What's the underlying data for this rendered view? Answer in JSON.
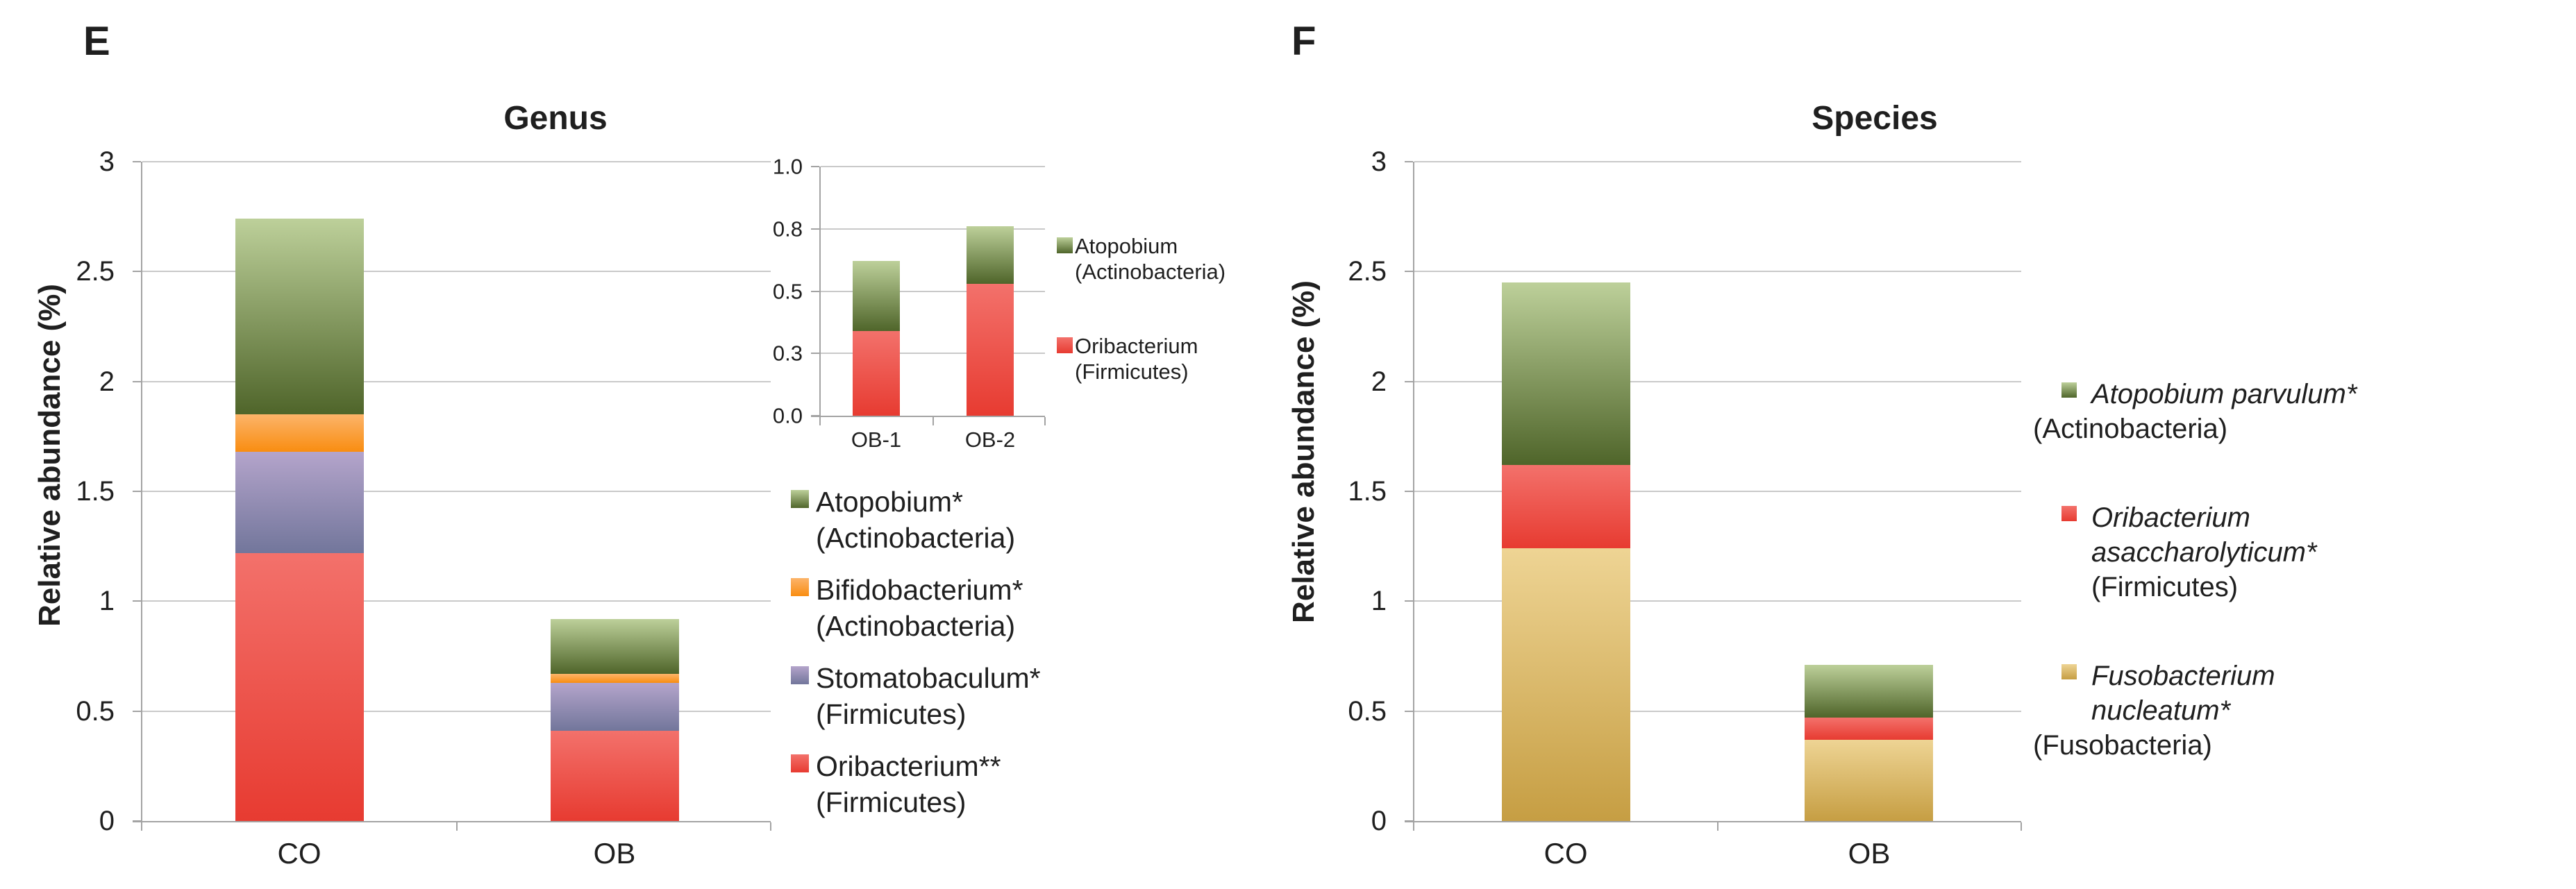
{
  "panels": {
    "e": {
      "letter": "E"
    },
    "f": {
      "letter": "F"
    }
  },
  "chart_data": [
    {
      "id": "genus-main",
      "type": "bar",
      "stacked": true,
      "title": "Genus",
      "ylabel": "Relative abundance (%)",
      "xlabel": "",
      "ylim": [
        0,
        3
      ],
      "grid": true,
      "legend_position": "right",
      "categories": [
        "CO",
        "OB"
      ],
      "yticks": [
        {
          "label": "0",
          "value": 0
        },
        {
          "label": "0.5",
          "value": 0.5
        },
        {
          "label": "1",
          "value": 1
        },
        {
          "label": "1.5",
          "value": 1.5
        },
        {
          "label": "2",
          "value": 2
        },
        {
          "label": "2.5",
          "value": 2.5
        },
        {
          "label": "3",
          "value": 3
        }
      ],
      "series": [
        {
          "name": "Oribacterium**",
          "phylum": "(Firmicutes)",
          "values": [
            1.22,
            0.41
          ],
          "color_top": "#f3716b",
          "color_bottom": "#e73b31"
        },
        {
          "name": "Stomatobaculum*",
          "phylum": "(Firmicutes)",
          "values": [
            0.46,
            0.22
          ],
          "color_top": "#b4a4cb",
          "color_bottom": "#72769b"
        },
        {
          "name": "Bifidobacterium*",
          "phylum": "(Actinobacteria)",
          "values": [
            0.17,
            0.04
          ],
          "color_top": "#fcb46a",
          "color_bottom": "#f98d11"
        },
        {
          "name": "Atopobium*",
          "phylum": "(Actinobacteria)",
          "values": [
            0.89,
            0.25
          ],
          "color_top": "#bdd09a",
          "color_bottom": "#4f652a"
        }
      ]
    },
    {
      "id": "genus-inset",
      "type": "bar",
      "stacked": true,
      "title": "",
      "ylabel": "",
      "xlabel": "",
      "ylim": [
        0,
        1
      ],
      "grid": true,
      "legend_position": "right",
      "categories": [
        "OB-1",
        "OB-2"
      ],
      "yticks": [
        {
          "label": "0.0",
          "value": 0
        },
        {
          "label": "0.3",
          "value": 0.25
        },
        {
          "label": "0.5",
          "value": 0.5
        },
        {
          "label": "0.8",
          "value": 0.75
        },
        {
          "label": "1.0",
          "value": 1
        }
      ],
      "series": [
        {
          "name": "Oribacterium",
          "phylum": "(Firmicutes)",
          "values": [
            0.34,
            0.53
          ],
          "color_top": "#f3716b",
          "color_bottom": "#e73b31"
        },
        {
          "name": "Atopobium",
          "phylum": "(Actinobacteria)",
          "values": [
            0.28,
            0.23
          ],
          "color_top": "#bdd09a",
          "color_bottom": "#4f652a"
        }
      ]
    },
    {
      "id": "species-main",
      "type": "bar",
      "stacked": true,
      "title": "Species",
      "ylabel": "Relative abundance (%)",
      "xlabel": "",
      "ylim": [
        0,
        3
      ],
      "grid": true,
      "legend_position": "right",
      "categories": [
        "CO",
        "OB"
      ],
      "yticks": [
        {
          "label": "0",
          "value": 0
        },
        {
          "label": "0.5",
          "value": 0.5
        },
        {
          "label": "1",
          "value": 1
        },
        {
          "label": "1.5",
          "value": 1.5
        },
        {
          "label": "2",
          "value": 2
        },
        {
          "label": "2.5",
          "value": 2.5
        },
        {
          "label": "3",
          "value": 3
        }
      ],
      "series": [
        {
          "name": "Fusobacterium nucleatum*",
          "phylum": "(Fusobacteria)",
          "values": [
            1.24,
            0.37
          ],
          "color_top": "#eed494",
          "color_bottom": "#c69e43"
        },
        {
          "name": "Oribacterium asaccharolyticum*",
          "phylum": "(Firmicutes)",
          "values": [
            0.38,
            0.1
          ],
          "color_top": "#f3716b",
          "color_bottom": "#e73b31"
        },
        {
          "name": "Atopobium parvulum*",
          "phylum": "(Actinobacteria)",
          "values": [
            0.83,
            0.24
          ],
          "color_top": "#bdd09a",
          "color_bottom": "#4f652a"
        }
      ]
    }
  ],
  "colors": {
    "background": "#ffffff",
    "text": "#1f1f1f",
    "gridline": "#c9c9c9",
    "axis": "#a3a3a3",
    "green": "#76933c",
    "orange": "#f79646",
    "purple": "#9d8cc2",
    "red": "#ed4c41",
    "gold": "#d6b556"
  }
}
